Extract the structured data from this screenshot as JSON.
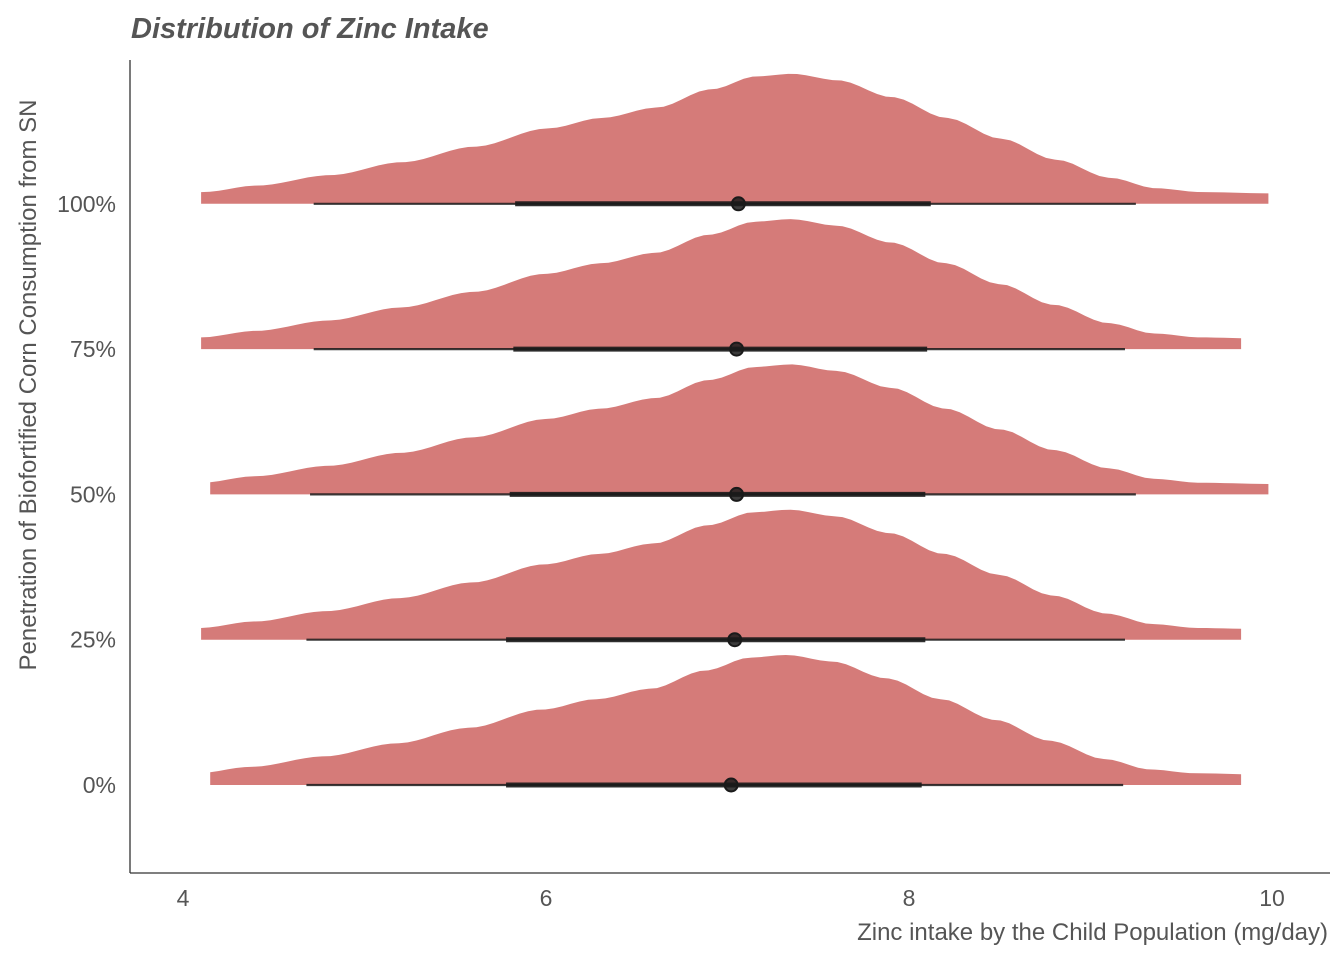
{
  "chart_data": {
    "type": "area",
    "subtype": "halfeye-density",
    "title": "Distribution of Zinc Intake",
    "xlabel": "Zinc intake by the Child Population (mg/day)",
    "ylabel": "Penetration of Biofortified Corn Consumption from SN",
    "xlim": [
      3.7,
      10.3
    ],
    "x_ticks": [
      4,
      6,
      8,
      10
    ],
    "x_tick_labels": [
      "4",
      "6",
      "8",
      "10"
    ],
    "categories": [
      "0%",
      "25%",
      "50%",
      "75%",
      "100%"
    ],
    "grid": false,
    "fill_color": "#d57b79",
    "interval_color": "#1a1a1a",
    "series": [
      {
        "range": [
          4.15,
          9.83
        ],
        "point": 7.02,
        "interval_66": [
          5.78,
          8.07
        ],
        "interval_95": [
          4.68,
          9.18
        ]
      },
      {
        "range": [
          4.1,
          9.83
        ],
        "point": 7.04,
        "interval_66": [
          5.78,
          8.09
        ],
        "interval_95": [
          4.68,
          9.19
        ]
      },
      {
        "range": [
          4.15,
          9.98
        ],
        "point": 7.05,
        "interval_66": [
          5.8,
          8.09
        ],
        "interval_95": [
          4.7,
          9.25
        ]
      },
      {
        "range": [
          4.1,
          9.83
        ],
        "point": 7.05,
        "interval_66": [
          5.82,
          8.1
        ],
        "interval_95": [
          4.72,
          9.19
        ]
      },
      {
        "range": [
          4.1,
          9.98
        ],
        "point": 7.06,
        "interval_66": [
          5.83,
          8.12
        ],
        "interval_95": [
          4.72,
          9.25
        ]
      }
    ],
    "density_profile": [
      [
        4.1,
        0.09
      ],
      [
        4.4,
        0.14
      ],
      [
        4.8,
        0.22
      ],
      [
        5.2,
        0.32
      ],
      [
        5.6,
        0.44
      ],
      [
        6.0,
        0.58
      ],
      [
        6.3,
        0.66
      ],
      [
        6.6,
        0.74
      ],
      [
        6.9,
        0.88
      ],
      [
        7.15,
        0.98
      ],
      [
        7.35,
        1.0
      ],
      [
        7.6,
        0.95
      ],
      [
        7.9,
        0.82
      ],
      [
        8.2,
        0.66
      ],
      [
        8.5,
        0.5
      ],
      [
        8.8,
        0.34
      ],
      [
        9.1,
        0.2
      ],
      [
        9.35,
        0.12
      ],
      [
        9.6,
        0.09
      ],
      [
        10.0,
        0.08
      ]
    ]
  }
}
